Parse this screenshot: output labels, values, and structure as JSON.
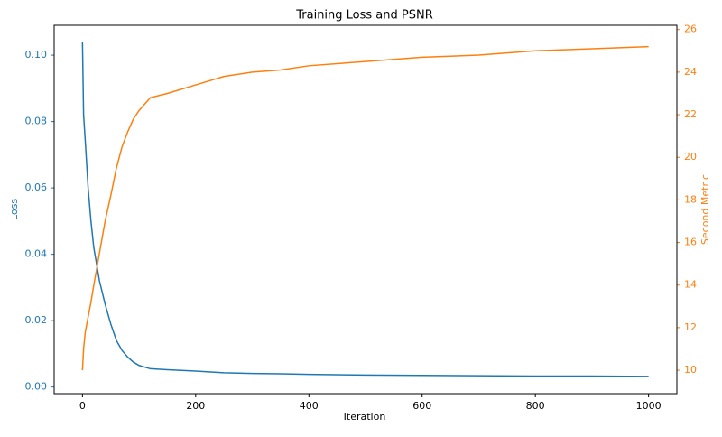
{
  "chart_data": {
    "type": "line",
    "title": "Training Loss and PSNR",
    "xlabel": "Iteration",
    "ylabel": "Loss",
    "y2label": "Second Metric",
    "x": [
      0,
      2,
      5,
      10,
      15,
      20,
      30,
      40,
      50,
      60,
      70,
      80,
      90,
      100,
      120,
      150,
      200,
      250,
      300,
      350,
      400,
      500,
      600,
      700,
      800,
      900,
      1000
    ],
    "series": [
      {
        "color": "#1f77b4",
        "axis": "y",
        "values": [
          0.104,
          0.082,
          0.074,
          0.06,
          0.05,
          0.042,
          0.032,
          0.025,
          0.019,
          0.014,
          0.011,
          0.009,
          0.0075,
          0.0065,
          0.0055,
          0.0052,
          0.0048,
          0.0043,
          0.0041,
          0.004,
          0.0038,
          0.0036,
          0.0035,
          0.0034,
          0.0033,
          0.0033,
          0.0032
        ]
      },
      {
        "color": "#ff7f0e",
        "axis": "y2",
        "values": [
          10,
          11,
          11.8,
          12.5,
          13.2,
          14,
          15.5,
          17,
          18.2,
          19.5,
          20.5,
          21.2,
          21.8,
          22.2,
          22.8,
          23,
          23.4,
          23.8,
          24,
          24.1,
          24.3,
          24.5,
          24.7,
          24.8,
          25,
          25.1,
          25.2
        ]
      }
    ],
    "xlim": [
      -50,
      1050
    ],
    "xticks": [
      0,
      200,
      400,
      600,
      800,
      1000
    ],
    "ylim": [
      -0.002,
      0.109
    ],
    "yticks": [
      {
        "value": 0,
        "label": "0.00"
      },
      0.02,
      0.04,
      0.06,
      0.08,
      {
        "value": 0.1,
        "label": "0.10"
      }
    ],
    "y2lim": [
      8.9,
      26.2
    ],
    "y2ticks": [
      10,
      12,
      14,
      16,
      18,
      20,
      22,
      24,
      26
    ]
  }
}
